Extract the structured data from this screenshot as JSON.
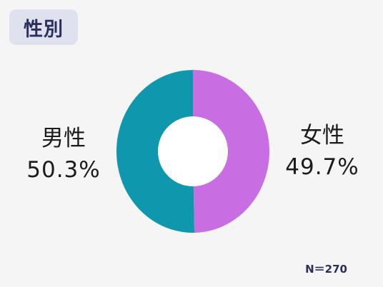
{
  "header": {
    "title": "性別"
  },
  "note": {
    "sample_size": "N＝270"
  },
  "colors": {
    "male": "#0e97ad",
    "female": "#c96de3",
    "hole": "#ffffff",
    "background": "#f5f5f5",
    "title_bg": "#dfe1ef"
  },
  "chart_data": {
    "type": "pie",
    "donut": true,
    "categories": [
      "男性",
      "女性"
    ],
    "values": [
      50.3,
      49.7
    ],
    "value_labels": [
      "50.3%",
      "49.7%"
    ],
    "title": "性別"
  }
}
